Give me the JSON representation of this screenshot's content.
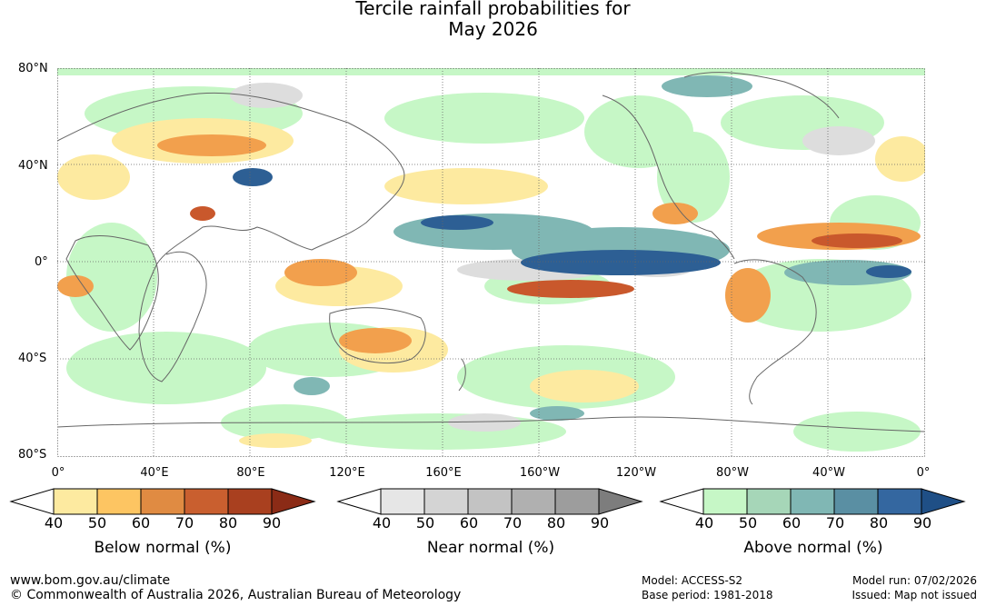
{
  "title": {
    "line1": "Tercile rainfall probabilities for",
    "line2": "May 2026"
  },
  "axes": {
    "lat_labels": [
      "80°N",
      "40°N",
      "0°",
      "40°S",
      "80°S"
    ],
    "lon_labels": [
      "0°",
      "40°E",
      "80°E",
      "120°E",
      "160°E",
      "160°W",
      "120°W",
      "80°W",
      "40°W",
      "0°"
    ]
  },
  "legends": [
    {
      "title": "Below normal (%)",
      "ticks": [
        "40",
        "50",
        "60",
        "70",
        "80",
        "90"
      ],
      "colors": [
        "#ffffff",
        "#fdeaa0",
        "#fdc562",
        "#e08b42",
        "#c95f2f",
        "#a9401f",
        "#8b2b16"
      ]
    },
    {
      "title": "Near normal (%)",
      "ticks": [
        "40",
        "50",
        "60",
        "70",
        "80",
        "90"
      ],
      "colors": [
        "#ffffff",
        "#e6e6e6",
        "#d4d4d4",
        "#c3c3c3",
        "#b0b0b0",
        "#9d9d9d",
        "#7d7d7d"
      ]
    },
    {
      "title": "Above normal (%)",
      "ticks": [
        "40",
        "50",
        "60",
        "70",
        "80",
        "90"
      ],
      "colors": [
        "#ffffff",
        "#c6f7c6",
        "#a6d6b8",
        "#80b7b4",
        "#5a8fa3",
        "#3467a0",
        "#1f4f86"
      ]
    }
  ],
  "footer": {
    "website": "www.bom.gov.au/climate",
    "copyright": "© Commonwealth of Australia 2026, Australian Bureau of Meteorology",
    "model": "Model: ACCESS-S2",
    "base_period": "Base period: 1981-2018",
    "model_run": "Model run: 07/02/2026",
    "issued": "Issued: Map not issued"
  }
}
